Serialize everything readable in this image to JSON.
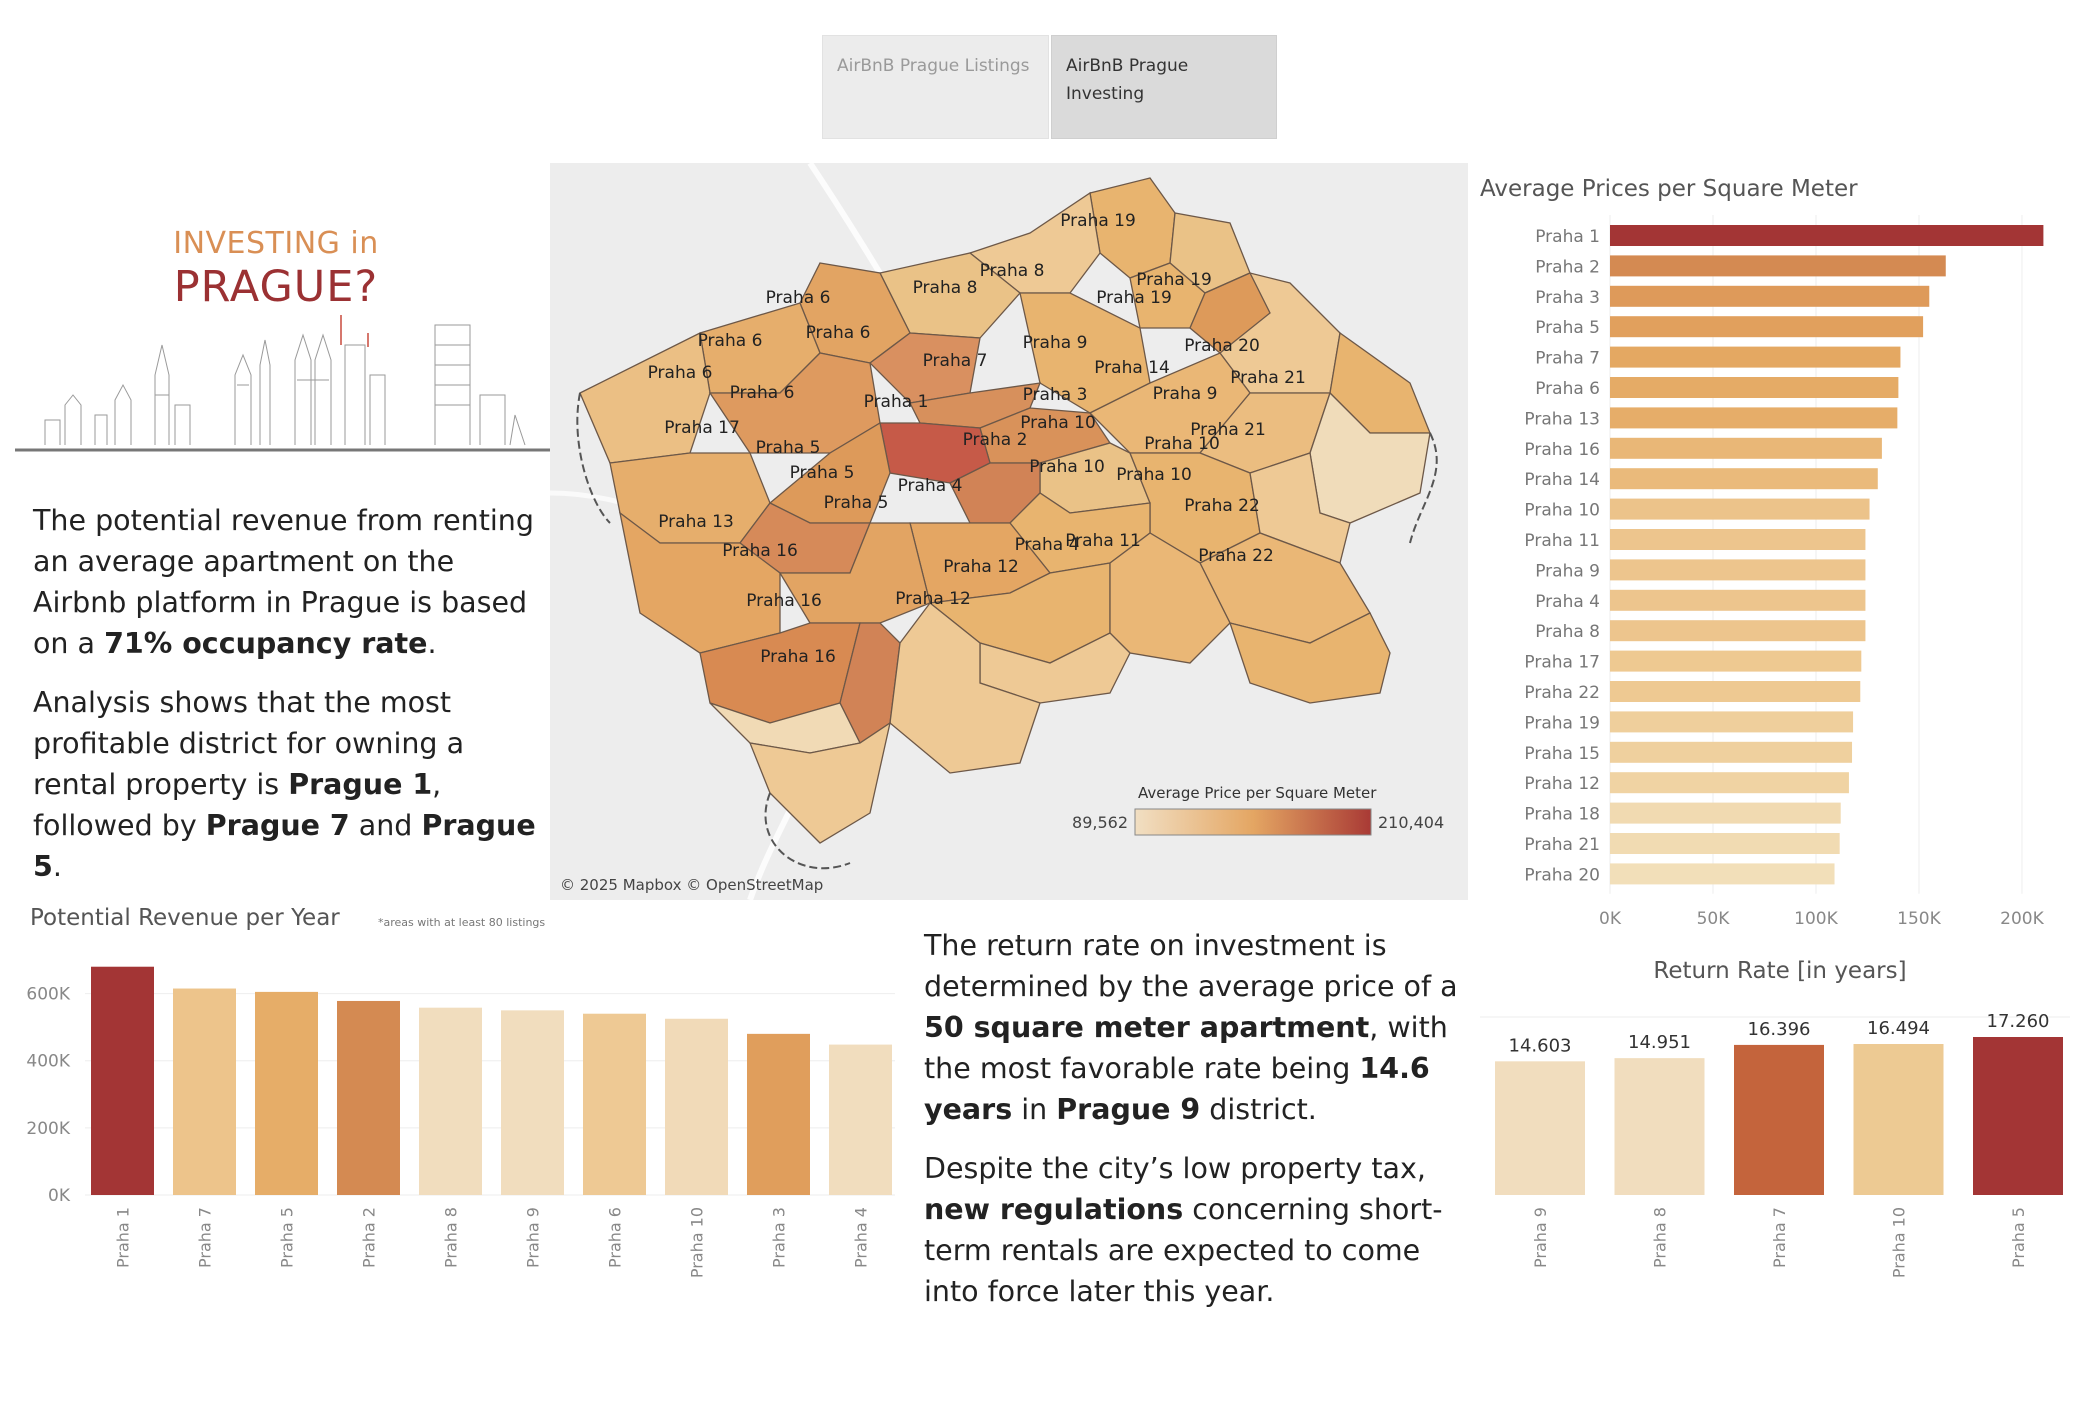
{
  "tabs": [
    {
      "label": "AirBnB Prague Listings"
    },
    {
      "label_line1": "AirBnB Prague",
      "label_line2": "Investing"
    }
  ],
  "title": {
    "small": "INVESTING in",
    "big": "PRAGUE?"
  },
  "intro": {
    "p1": [
      "The potential revenue from renting an average apartment on the Airbnb platform in Prague is based on a ",
      "71% occupancy rate",
      "."
    ],
    "p2": [
      "Analysis shows that the most profitable district for owning a rental property is ",
      "Prague 1",
      ", followed by ",
      "Prague 7",
      " and ",
      "Prague 5",
      "."
    ]
  },
  "outro": {
    "p1": [
      "The return rate on investment is determined by the average price of a ",
      "50 square meter apartment",
      ", with the most favorable rate being ",
      "14.6 years",
      " in ",
      "Prague 9",
      " district."
    ],
    "p2": [
      "Despite the city’s low property tax, ",
      "new regulations",
      " concerning short-term rentals are expected to come into force later this year."
    ]
  },
  "map": {
    "attribution": "© 2025 Mapbox © OpenStreetMap",
    "legend_title": "Average Price per Square Meter",
    "legend_min": "89,562",
    "legend_max": "210,404",
    "labels": [
      {
        "text": "Praha 19"
      },
      {
        "text": "Praha 8"
      },
      {
        "text": "Praha 8"
      },
      {
        "text": "Praha 19"
      },
      {
        "text": "Praha 6"
      },
      {
        "text": "Praha 19"
      },
      {
        "text": "Praha 6"
      },
      {
        "text": "Praha 6"
      },
      {
        "text": "Praha 9"
      },
      {
        "text": "Praha 20"
      },
      {
        "text": "Praha 7"
      },
      {
        "text": "Praha 14"
      },
      {
        "text": "Praha 6"
      },
      {
        "text": "Praha 21"
      },
      {
        "text": "Praha 6"
      },
      {
        "text": "Praha 3"
      },
      {
        "text": "Praha 9"
      },
      {
        "text": "Praha 1"
      },
      {
        "text": "Praha 10"
      },
      {
        "text": "Praha 21"
      },
      {
        "text": "Praha 17"
      },
      {
        "text": "Praha 2"
      },
      {
        "text": "Praha 10"
      },
      {
        "text": "Praha 5"
      },
      {
        "text": "Praha 10"
      },
      {
        "text": "Praha 5"
      },
      {
        "text": "Praha 10"
      },
      {
        "text": "Praha 4"
      },
      {
        "text": "Praha 5"
      },
      {
        "text": "Praha 22"
      },
      {
        "text": "Praha 13"
      },
      {
        "text": "Praha 4"
      },
      {
        "text": "Praha 11"
      },
      {
        "text": "Praha 16"
      },
      {
        "text": "Praha 22"
      },
      {
        "text": "Praha 12"
      },
      {
        "text": "Praha 16"
      },
      {
        "text": "Praha 12"
      },
      {
        "text": "Praha 16"
      }
    ],
    "colors": {
      "low": "#f1dfc3",
      "mid": "#e4a663",
      "high": "#a93a35"
    }
  },
  "chart_data": [
    {
      "type": "bar",
      "orientation": "horizontal",
      "title": "Average Prices per Square Meter",
      "categories": [
        "Praha 1",
        "Praha 2",
        "Praha 3",
        "Praha 5",
        "Praha 7",
        "Praha 6",
        "Praha 13",
        "Praha 16",
        "Praha 14",
        "Praha 10",
        "Praha 11",
        "Praha 9",
        "Praha 4",
        "Praha 8",
        "Praha 17",
        "Praha 22",
        "Praha 19",
        "Praha 15",
        "Praha 12",
        "Praha 18",
        "Praha 21",
        "Praha 20"
      ],
      "values": [
        210404,
        163000,
        155000,
        152000,
        141000,
        140000,
        139500,
        132000,
        130000,
        126000,
        124000,
        124000,
        124000,
        124000,
        122000,
        121500,
        118000,
        117500,
        116000,
        112000,
        111500,
        109000
      ],
      "colors": [
        "#a33535",
        "#d48a52",
        "#de9a5a",
        "#e1a05d",
        "#e4a862",
        "#e5ab66",
        "#e6ad69",
        "#e9b777",
        "#eaba7b",
        "#ecc38a",
        "#edc58d",
        "#edc58d",
        "#edc58d",
        "#edc58d",
        "#eec991",
        "#eec992",
        "#efcf9c",
        "#efd09e",
        "#f0d3a3",
        "#f1dab1",
        "#f1dbb2",
        "#f2dfb9"
      ],
      "xlim": [
        0,
        210404
      ],
      "xticks": [
        "0K",
        "50K",
        "100K",
        "150K",
        "200K"
      ],
      "xtick_values": [
        0,
        50000,
        100000,
        150000,
        200000
      ]
    },
    {
      "type": "bar",
      "title": "Potential Revenue per Year",
      "note": "*areas with at least 80 listings",
      "categories": [
        "Praha 1",
        "Praha 7",
        "Praha 5",
        "Praha 2",
        "Praha 8",
        "Praha 9",
        "Praha 6",
        "Praha 10",
        "Praha 3",
        "Praha 4"
      ],
      "values": [
        680000,
        615000,
        605000,
        578000,
        558000,
        550000,
        540000,
        525000,
        480000,
        448000
      ],
      "colors": [
        "#a33535",
        "#edc48b",
        "#e6ad68",
        "#d48a52",
        "#f1ddbe",
        "#f1ddbe",
        "#eec994",
        "#f1dab8",
        "#e09e5c",
        "#f1ddbe"
      ],
      "ylim": [
        0,
        700000
      ],
      "yticks": [
        "0K",
        "200K",
        "400K",
        "600K"
      ],
      "ytick_values": [
        0,
        200000,
        400000,
        600000
      ]
    },
    {
      "type": "bar",
      "title": "Return Rate [in years]",
      "categories": [
        "Praha 9",
        "Praha 8",
        "Praha 7",
        "Praha 10",
        "Praha 5"
      ],
      "values": [
        14.603,
        14.951,
        16.396,
        16.494,
        17.26
      ],
      "labels": [
        "14.603",
        "14.951",
        "16.396",
        "16.494",
        "17.260"
      ],
      "colors": [
        "#f1ddbe",
        "#f1ddbe",
        "#c4643c",
        "#edca93",
        "#a33535"
      ],
      "ylim": [
        0,
        17.26
      ]
    }
  ]
}
